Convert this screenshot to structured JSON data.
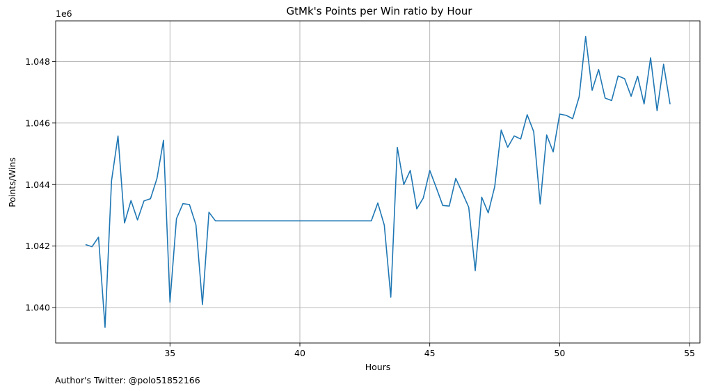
{
  "chart_data": {
    "type": "line",
    "title": "GtMk's Points per Win ratio by Hour",
    "xlabel": "Hours",
    "ylabel": "Points/Wins",
    "y_offset_label": "1e6",
    "xlim": [
      30.6,
      55.4
    ],
    "ylim": [
      1.03885,
      1.04932
    ],
    "xticks": [
      35,
      40,
      45,
      50,
      55
    ],
    "xtick_labels": [
      "35",
      "40",
      "45",
      "50",
      "55"
    ],
    "yticks": [
      1.04,
      1.042,
      1.044,
      1.046,
      1.048
    ],
    "ytick_labels": [
      "1.040",
      "1.042",
      "1.044",
      "1.046",
      "1.048"
    ],
    "grid": true,
    "legend": "none",
    "series": [
      {
        "color": "#1f77b4",
        "x": [
          31.75,
          32.0,
          32.25,
          32.5,
          32.75,
          33.0,
          33.25,
          33.5,
          33.75,
          34.0,
          34.25,
          34.5,
          34.75,
          35.0,
          35.25,
          35.5,
          35.75,
          36.0,
          36.25,
          36.5,
          36.75,
          37.0,
          37.5,
          38.0,
          38.5,
          39.0,
          39.5,
          40.0,
          40.5,
          41.0,
          41.5,
          42.0,
          42.5,
          42.75,
          43.0,
          43.25,
          43.5,
          43.75,
          44.0,
          44.25,
          44.5,
          44.75,
          45.0,
          45.25,
          45.5,
          45.75,
          46.0,
          46.25,
          46.5,
          46.75,
          47.0,
          47.25,
          47.5,
          47.75,
          48.0,
          48.25,
          48.5,
          48.75,
          49.0,
          49.25,
          49.5,
          49.75,
          50.0,
          50.25,
          50.5,
          50.75,
          51.0,
          51.25,
          51.5,
          51.75,
          52.0,
          52.25,
          52.5,
          52.75,
          53.0,
          53.25,
          53.5,
          53.75,
          54.0,
          54.25
        ],
        "y": [
          1.04205,
          1.04198,
          1.04229,
          1.03936,
          1.04412,
          1.04558,
          1.04275,
          1.04348,
          1.04285,
          1.04347,
          1.04354,
          1.0442,
          1.04544,
          1.04018,
          1.04289,
          1.04338,
          1.04335,
          1.04269,
          1.0401,
          1.0431,
          1.04282,
          1.04282,
          1.04282,
          1.04282,
          1.04282,
          1.04282,
          1.04282,
          1.04282,
          1.04282,
          1.04282,
          1.04282,
          1.04282,
          1.04282,
          1.04282,
          1.0434,
          1.04268,
          1.04034,
          1.04521,
          1.044,
          1.04446,
          1.04321,
          1.04356,
          1.04446,
          1.0439,
          1.04332,
          1.0433,
          1.0442,
          1.04374,
          1.04326,
          1.0412,
          1.04359,
          1.04308,
          1.04393,
          1.04577,
          1.04521,
          1.04558,
          1.04548,
          1.04627,
          1.04572,
          1.04337,
          1.04561,
          1.04506,
          1.04629,
          1.04625,
          1.04614,
          1.04685,
          1.04881,
          1.04706,
          1.04774,
          1.04681,
          1.04673,
          1.04753,
          1.04744,
          1.04687,
          1.04752,
          1.04662,
          1.04812,
          1.0464,
          1.04791,
          1.04661
        ]
      }
    ]
  },
  "footer": {
    "credit": "Author's Twitter: @polo51852166"
  }
}
